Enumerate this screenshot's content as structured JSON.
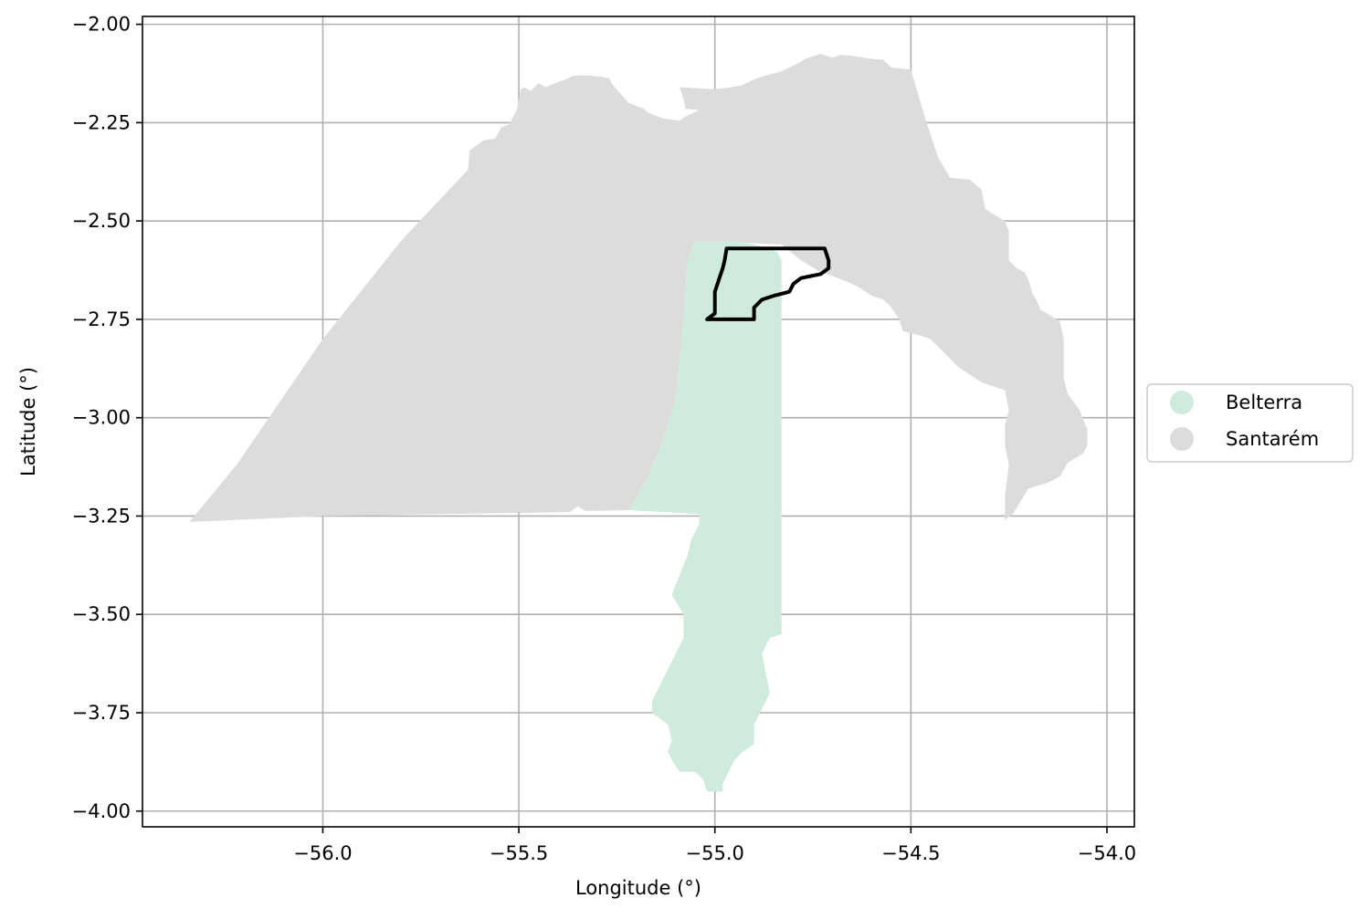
{
  "chart_data": {
    "type": "map",
    "title": "",
    "xlabel": "Longitude (°)",
    "ylabel": "Latitude (°)",
    "xlim": [
      -56.46,
      -53.93
    ],
    "ylim": [
      -4.04,
      -1.98
    ],
    "grid": true,
    "x_ticks": [
      -56.0,
      -55.5,
      -55.0,
      -54.5,
      -54.0
    ],
    "x_tick_labels": [
      "−56.0",
      "−55.5",
      "−55.0",
      "−54.5",
      "−54.0"
    ],
    "y_ticks": [
      -2.0,
      -2.25,
      -2.5,
      -2.75,
      -3.0,
      -3.25,
      -3.5,
      -3.75,
      -4.0
    ],
    "y_tick_labels": [
      "−2.00",
      "−2.25",
      "−2.50",
      "−2.75",
      "−3.00",
      "−3.25",
      "−3.50",
      "−3.75",
      "−4.00"
    ],
    "legend": {
      "position": "right",
      "entries": [
        {
          "label": "Belterra",
          "color": "#cfebde"
        },
        {
          "label": "Santarém",
          "color": "#dcdcdc"
        }
      ]
    },
    "regions": [
      {
        "name": "Santarém",
        "color": "#dcdcdc",
        "coords": [
          [
            -56.34,
            -3.265
          ],
          [
            -56.22,
            -3.12
          ],
          [
            -56.0,
            -2.8
          ],
          [
            -55.8,
            -2.55
          ],
          [
            -55.63,
            -2.37
          ],
          [
            -55.625,
            -2.32
          ],
          [
            -55.61,
            -2.31
          ],
          [
            -55.59,
            -2.295
          ],
          [
            -55.56,
            -2.29
          ],
          [
            -55.545,
            -2.262
          ],
          [
            -55.525,
            -2.255
          ],
          [
            -55.505,
            -2.218
          ],
          [
            -55.495,
            -2.165
          ],
          [
            -55.485,
            -2.16
          ],
          [
            -55.47,
            -2.17
          ],
          [
            -55.45,
            -2.15
          ],
          [
            -55.43,
            -2.16
          ],
          [
            -55.41,
            -2.15
          ],
          [
            -55.38,
            -2.14
          ],
          [
            -55.36,
            -2.13
          ],
          [
            -55.33,
            -2.13
          ],
          [
            -55.3,
            -2.132
          ],
          [
            -55.27,
            -2.137
          ],
          [
            -55.26,
            -2.155
          ],
          [
            -55.22,
            -2.2
          ],
          [
            -55.18,
            -2.215
          ],
          [
            -55.17,
            -2.225
          ],
          [
            -55.13,
            -2.24
          ],
          [
            -55.09,
            -2.245
          ],
          [
            -55.08,
            -2.237
          ],
          [
            -55.06,
            -2.228
          ],
          [
            -55.04,
            -2.218
          ],
          [
            -55.075,
            -2.215
          ],
          [
            -55.08,
            -2.19
          ],
          [
            -55.09,
            -2.16
          ],
          [
            -55.0,
            -2.165
          ],
          [
            -54.96,
            -2.16
          ],
          [
            -54.93,
            -2.155
          ],
          [
            -54.9,
            -2.14
          ],
          [
            -54.87,
            -2.13
          ],
          [
            -54.83,
            -2.12
          ],
          [
            -54.79,
            -2.1
          ],
          [
            -54.77,
            -2.088
          ],
          [
            -54.73,
            -2.075
          ],
          [
            -54.7,
            -2.085
          ],
          [
            -54.68,
            -2.078
          ],
          [
            -54.65,
            -2.08
          ],
          [
            -54.6,
            -2.088
          ],
          [
            -54.57,
            -2.09
          ],
          [
            -54.55,
            -2.11
          ],
          [
            -54.5,
            -2.115
          ],
          [
            -54.46,
            -2.25
          ],
          [
            -54.43,
            -2.34
          ],
          [
            -54.4,
            -2.39
          ],
          [
            -54.35,
            -2.395
          ],
          [
            -54.32,
            -2.42
          ],
          [
            -54.31,
            -2.47
          ],
          [
            -54.26,
            -2.5
          ],
          [
            -54.25,
            -2.525
          ],
          [
            -54.25,
            -2.56
          ],
          [
            -54.25,
            -2.6
          ],
          [
            -54.23,
            -2.62
          ],
          [
            -54.21,
            -2.63
          ],
          [
            -54.2,
            -2.65
          ],
          [
            -54.19,
            -2.685
          ],
          [
            -54.18,
            -2.7
          ],
          [
            -54.17,
            -2.725
          ],
          [
            -54.12,
            -2.755
          ],
          [
            -54.11,
            -2.8
          ],
          [
            -54.11,
            -2.83
          ],
          [
            -54.11,
            -2.9
          ],
          [
            -54.1,
            -2.94
          ],
          [
            -54.07,
            -2.98
          ],
          [
            -54.05,
            -3.03
          ],
          [
            -54.05,
            -3.07
          ],
          [
            -54.06,
            -3.09
          ],
          [
            -54.1,
            -3.115
          ],
          [
            -54.12,
            -3.15
          ],
          [
            -54.15,
            -3.165
          ],
          [
            -54.2,
            -3.18
          ],
          [
            -54.24,
            -3.245
          ],
          [
            -54.26,
            -3.26
          ],
          [
            -54.26,
            -3.2
          ],
          [
            -54.25,
            -3.12
          ],
          [
            -54.26,
            -3.07
          ],
          [
            -54.26,
            -3.02
          ],
          [
            -54.25,
            -2.98
          ],
          [
            -54.26,
            -2.93
          ],
          [
            -54.29,
            -2.92
          ],
          [
            -54.32,
            -2.91
          ],
          [
            -54.38,
            -2.87
          ],
          [
            -54.41,
            -2.84
          ],
          [
            -54.43,
            -2.82
          ],
          [
            -54.45,
            -2.8
          ],
          [
            -54.48,
            -2.79
          ],
          [
            -54.52,
            -2.78
          ],
          [
            -54.53,
            -2.75
          ],
          [
            -54.55,
            -2.72
          ],
          [
            -54.57,
            -2.7
          ],
          [
            -54.6,
            -2.69
          ],
          [
            -54.63,
            -2.67
          ],
          [
            -54.66,
            -2.655
          ],
          [
            -54.7,
            -2.64
          ],
          [
            -54.73,
            -2.63
          ],
          [
            -54.78,
            -2.6
          ],
          [
            -54.83,
            -2.56
          ],
          [
            -55.05,
            -2.55
          ],
          [
            -55.07,
            -2.6
          ],
          [
            -55.08,
            -2.75
          ],
          [
            -55.1,
            -2.95
          ],
          [
            -55.13,
            -3.05
          ],
          [
            -55.17,
            -3.15
          ],
          [
            -55.22,
            -3.235
          ],
          [
            -55.33,
            -3.237
          ],
          [
            -55.35,
            -3.225
          ],
          [
            -55.37,
            -3.24
          ],
          [
            -55.7,
            -3.245
          ],
          [
            -56.0,
            -3.25
          ]
        ]
      },
      {
        "name": "Belterra",
        "color": "#cfebde",
        "coords": [
          [
            -55.05,
            -2.55
          ],
          [
            -54.96,
            -2.55
          ],
          [
            -54.9,
            -2.56
          ],
          [
            -54.86,
            -2.57
          ],
          [
            -54.84,
            -2.58
          ],
          [
            -54.83,
            -2.6
          ],
          [
            -54.83,
            -3.0
          ],
          [
            -54.83,
            -3.3
          ],
          [
            -54.83,
            -3.55
          ],
          [
            -54.86,
            -3.56
          ],
          [
            -54.88,
            -3.6
          ],
          [
            -54.86,
            -3.7
          ],
          [
            -54.88,
            -3.74
          ],
          [
            -54.9,
            -3.78
          ],
          [
            -54.9,
            -3.83
          ],
          [
            -54.93,
            -3.85
          ],
          [
            -54.95,
            -3.87
          ],
          [
            -54.98,
            -3.93
          ],
          [
            -54.98,
            -3.95
          ],
          [
            -55.02,
            -3.95
          ],
          [
            -55.03,
            -3.92
          ],
          [
            -55.05,
            -3.9
          ],
          [
            -55.09,
            -3.9
          ],
          [
            -55.11,
            -3.87
          ],
          [
            -55.12,
            -3.85
          ],
          [
            -55.11,
            -3.82
          ],
          [
            -55.12,
            -3.78
          ],
          [
            -55.16,
            -3.75
          ],
          [
            -55.16,
            -3.72
          ],
          [
            -55.14,
            -3.68
          ],
          [
            -55.12,
            -3.64
          ],
          [
            -55.1,
            -3.6
          ],
          [
            -55.08,
            -3.56
          ],
          [
            -55.08,
            -3.5
          ],
          [
            -55.11,
            -3.45
          ],
          [
            -55.09,
            -3.4
          ],
          [
            -55.07,
            -3.35
          ],
          [
            -55.06,
            -3.31
          ],
          [
            -55.04,
            -3.27
          ],
          [
            -55.04,
            -3.245
          ],
          [
            -55.13,
            -3.24
          ],
          [
            -55.22,
            -3.235
          ],
          [
            -55.17,
            -3.15
          ],
          [
            -55.13,
            -3.05
          ],
          [
            -55.1,
            -2.95
          ],
          [
            -55.08,
            -2.75
          ],
          [
            -55.07,
            -2.6
          ]
        ]
      }
    ],
    "highlight_outline": {
      "name": "study-area",
      "color": "#000000",
      "coords": [
        [
          -54.97,
          -2.57
        ],
        [
          -54.72,
          -2.57
        ],
        [
          -54.71,
          -2.6
        ],
        [
          -54.71,
          -2.62
        ],
        [
          -54.73,
          -2.635
        ],
        [
          -54.78,
          -2.645
        ],
        [
          -54.8,
          -2.66
        ],
        [
          -54.81,
          -2.68
        ],
        [
          -54.85,
          -2.69
        ],
        [
          -54.88,
          -2.7
        ],
        [
          -54.9,
          -2.72
        ],
        [
          -54.9,
          -2.75
        ],
        [
          -55.02,
          -2.75
        ],
        [
          -55.0,
          -2.735
        ],
        [
          -55.0,
          -2.68
        ],
        [
          -54.99,
          -2.65
        ],
        [
          -54.98,
          -2.62
        ],
        [
          -54.975,
          -2.6
        ]
      ]
    }
  }
}
